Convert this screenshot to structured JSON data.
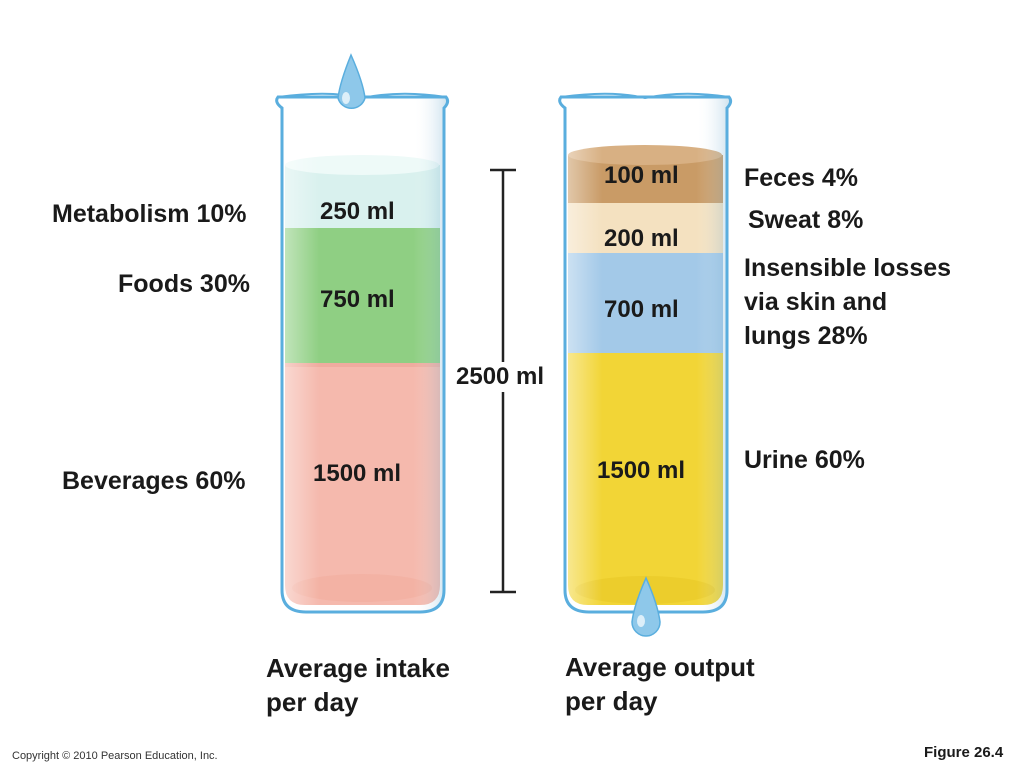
{
  "intake": {
    "caption": [
      "Average intake",
      "per day"
    ],
    "segments": [
      {
        "label": "Metabolism 10%",
        "volume": "250 ml",
        "ml": 250,
        "color": "#d9f1ee"
      },
      {
        "label": "Foods 30%",
        "volume": "750 ml",
        "ml": 750,
        "color": "#8fcf83"
      },
      {
        "label": "Beverages 60%",
        "volume": "1500 ml",
        "ml": 1500,
        "color": "#f5b9ad"
      }
    ]
  },
  "output": {
    "caption": [
      "Average output",
      "per day"
    ],
    "segments": [
      {
        "label": "Feces 4%",
        "volume": "100 ml",
        "ml": 100,
        "color": "#c99b66"
      },
      {
        "label": "Sweat 8%",
        "volume": "200 ml",
        "ml": 200,
        "color": "#f4e1c0"
      },
      {
        "label": "Insensible losses via skin and lungs 28%",
        "label_lines": [
          "Insensible losses",
          "via skin and",
          "lungs 28%"
        ],
        "volume": "700 ml",
        "ml": 700,
        "color": "#a3c9e8"
      },
      {
        "label": "Urine 60%",
        "volume": "1500 ml",
        "ml": 1500,
        "color": "#f2d536"
      }
    ]
  },
  "total": {
    "label": "2500 ml",
    "ml": 2500
  },
  "footer": {
    "copyright": "Copyright © 2010 Pearson Education, Inc.",
    "figure": "Figure 26.4"
  },
  "colors": {
    "glass": "#9fd0ea",
    "glass_edge": "#5aaede",
    "drop": "#8ec8ea"
  },
  "icons": [
    "water-drop-icon",
    "beaker-icon"
  ]
}
